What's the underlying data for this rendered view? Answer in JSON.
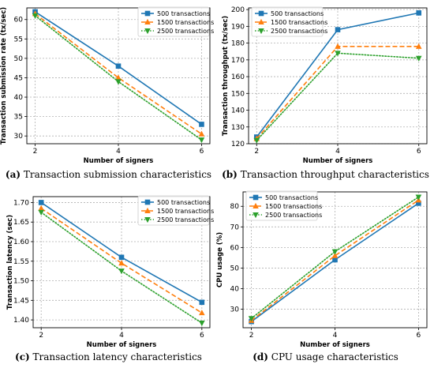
{
  "colors": {
    "series": [
      "#1f77b4",
      "#ff7f0e",
      "#2ca02c"
    ]
  },
  "chart_data": [
    {
      "type": "line",
      "caption_tag": "(a)",
      "caption_text": "Transaction submission characteristics",
      "xlabel": "Number of signers",
      "ylabel": "Transaction submission rate (tx/sec)",
      "x": [
        2,
        4,
        6
      ],
      "xticks": [
        "2",
        "4",
        "6"
      ],
      "ylim": [
        28,
        63
      ],
      "yticks": [
        30,
        35,
        40,
        45,
        50,
        55,
        60
      ],
      "grid": true,
      "legend_position": "top-right",
      "series": [
        {
          "name": "500 transactions",
          "values": [
            62,
            48,
            33
          ],
          "marker": "square",
          "dash": "solid"
        },
        {
          "name": "1500 transactions",
          "values": [
            61.5,
            45,
            30.5
          ],
          "marker": "triangle-up",
          "dash": "dashed"
        },
        {
          "name": "2500 transactions",
          "values": [
            61,
            44,
            29
          ],
          "marker": "triangle-down",
          "dash": "dotted"
        }
      ]
    },
    {
      "type": "line",
      "caption_tag": "(b)",
      "caption_text": "Transaction throughput characteristics",
      "xlabel": "Number of signers",
      "ylabel": "Transaction throughput (tx/sec)",
      "x": [
        2,
        4,
        6
      ],
      "xticks": [
        "2",
        "4",
        "6"
      ],
      "ylim": [
        120,
        201
      ],
      "yticks": [
        120,
        130,
        140,
        150,
        160,
        170,
        180,
        190,
        200
      ],
      "grid": true,
      "legend_position": "top-left",
      "series": [
        {
          "name": "500 transactions",
          "values": [
            124,
            188,
            198
          ],
          "marker": "square",
          "dash": "solid"
        },
        {
          "name": "1500 transactions",
          "values": [
            123,
            178,
            178
          ],
          "marker": "triangle-up",
          "dash": "dashed"
        },
        {
          "name": "2500 transactions",
          "values": [
            122,
            174,
            171
          ],
          "marker": "triangle-down",
          "dash": "dotted"
        }
      ]
    },
    {
      "type": "line",
      "caption_tag": "(c)",
      "caption_text": "Transaction latency characteristics",
      "xlabel": "Number of signers",
      "ylabel": "Transaction latency (sec)",
      "x": [
        2,
        4,
        6
      ],
      "xticks": [
        "2",
        "4",
        "6"
      ],
      "ylim": [
        1.38,
        1.715
      ],
      "yticks": [
        "1.40",
        "1.45",
        "1.50",
        "1.55",
        "1.60",
        "1.65",
        "1.70"
      ],
      "grid": true,
      "legend_position": "top-right",
      "series": [
        {
          "name": "500 transactions",
          "values": [
            1.7,
            1.56,
            1.445
          ],
          "marker": "square",
          "dash": "solid"
        },
        {
          "name": "1500 transactions",
          "values": [
            1.685,
            1.545,
            1.418
          ],
          "marker": "triangle-up",
          "dash": "dashed"
        },
        {
          "name": "2500 transactions",
          "values": [
            1.675,
            1.525,
            1.392
          ],
          "marker": "triangle-down",
          "dash": "dotted"
        }
      ]
    },
    {
      "type": "line",
      "caption_tag": "(d)",
      "caption_text": "CPU usage characteristics",
      "xlabel": "Number of signers",
      "ylabel": "CPU usage (%)",
      "x": [
        2,
        4,
        6
      ],
      "xticks": [
        "2",
        "4",
        "6"
      ],
      "ylim": [
        21,
        87
      ],
      "yticks": [
        30,
        40,
        50,
        60,
        70,
        80
      ],
      "grid": true,
      "legend_position": "top-left",
      "series": [
        {
          "name": "500 transactions",
          "values": [
            24,
            54,
            81.5
          ],
          "marker": "square",
          "dash": "solid"
        },
        {
          "name": "1500 transactions",
          "values": [
            24.5,
            56,
            83
          ],
          "marker": "triangle-up",
          "dash": "dashed"
        },
        {
          "name": "2500 transactions",
          "values": [
            25.5,
            58,
            84.5
          ],
          "marker": "triangle-down",
          "dash": "dotted"
        }
      ]
    }
  ]
}
